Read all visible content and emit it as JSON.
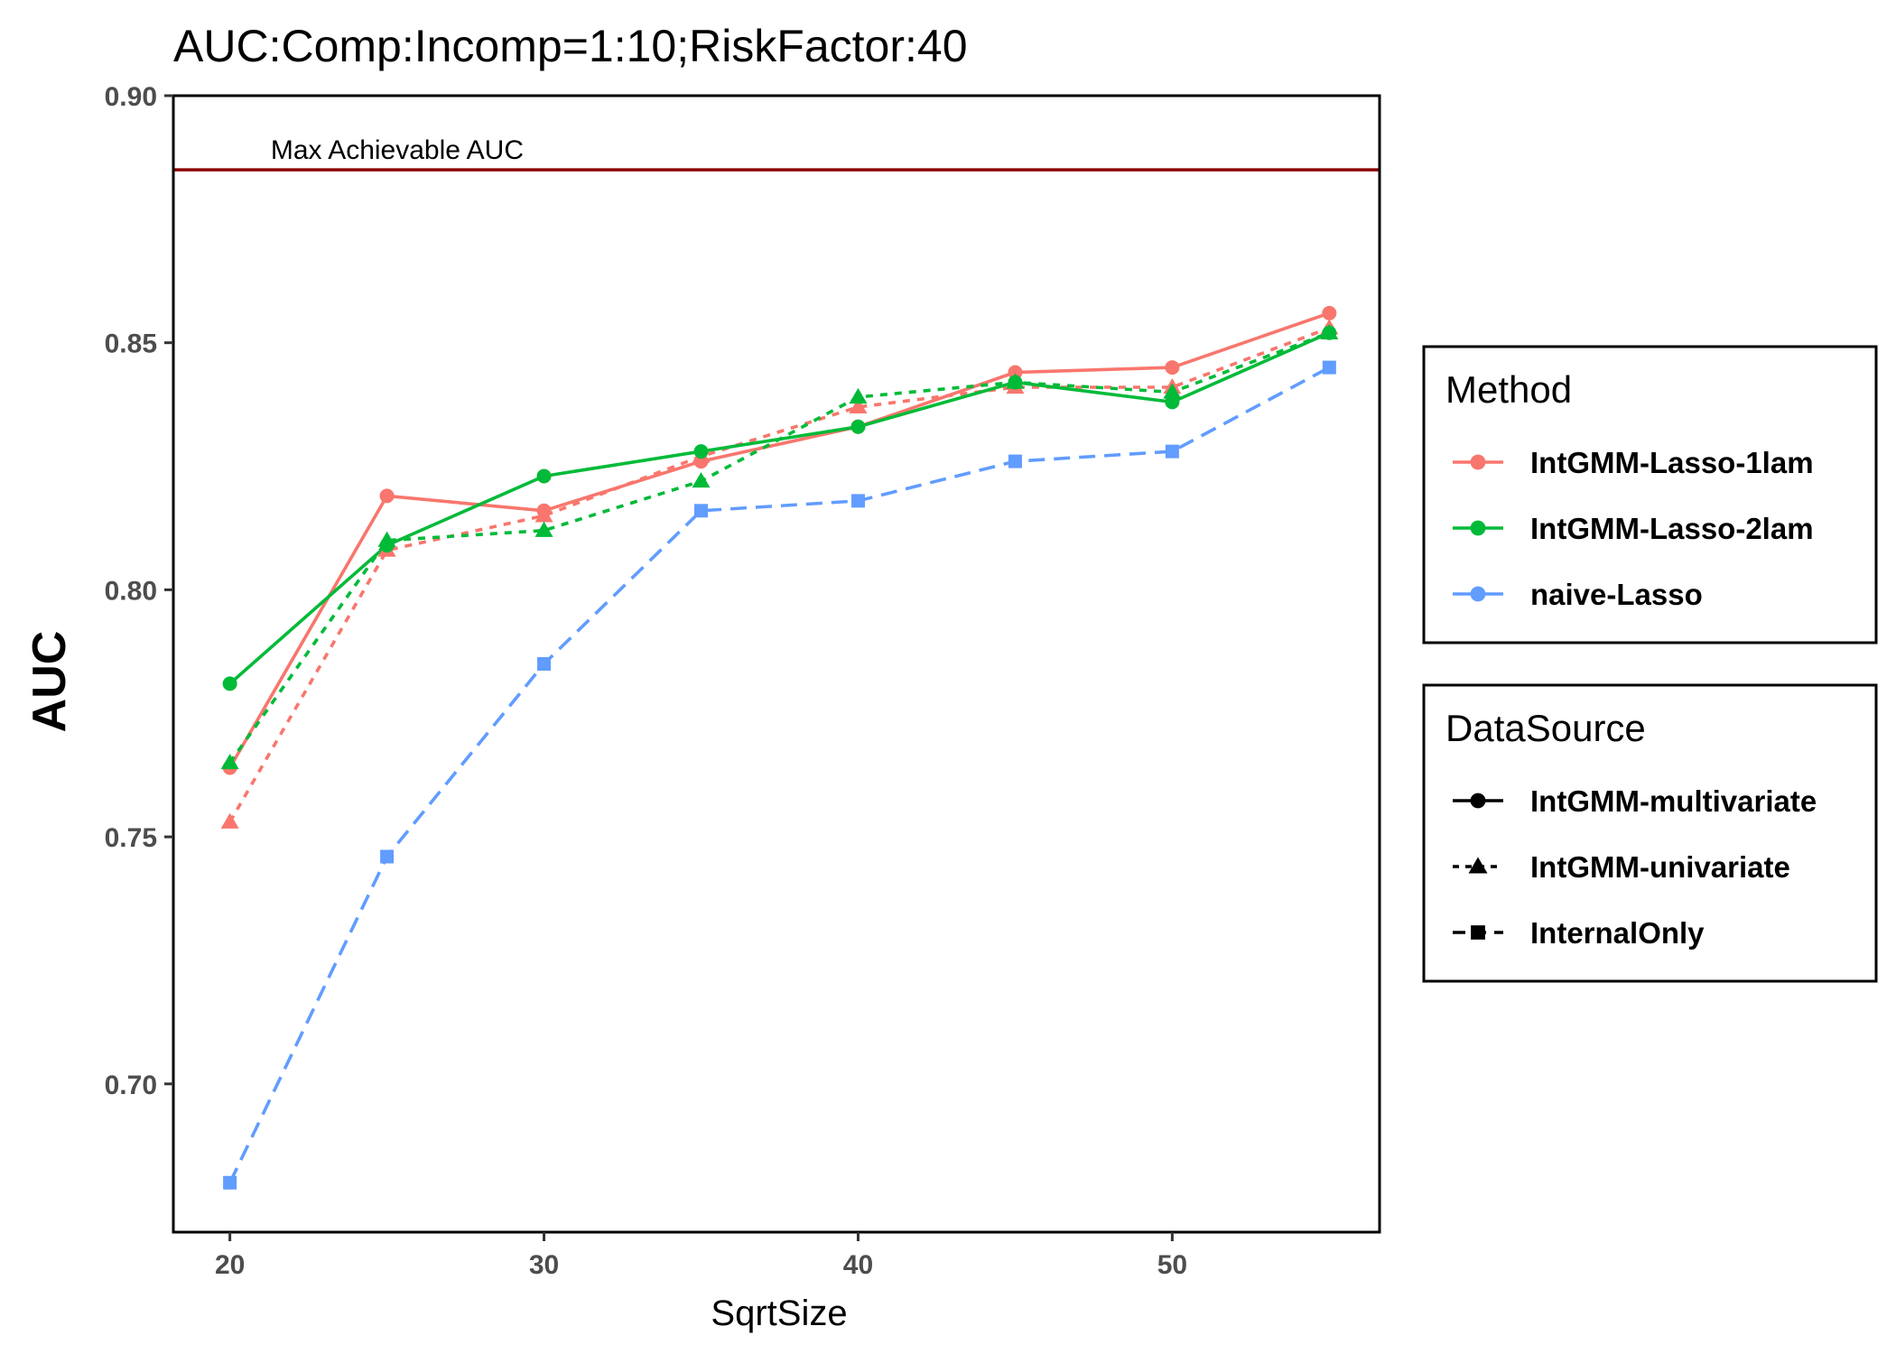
{
  "chart_data": {
    "type": "line",
    "title": "AUC:Comp:Incomp=1:10;RiskFactor:40",
    "xlabel": "SqrtSize",
    "ylabel": "AUC",
    "xlim": [
      18.2,
      56.6
    ],
    "ylim": [
      0.67,
      0.9
    ],
    "xticks": [
      20,
      30,
      40,
      50
    ],
    "xtick_labels": [
      "20",
      "30",
      "40",
      "50"
    ],
    "yticks": [
      0.7,
      0.75,
      0.8,
      0.85,
      0.9
    ],
    "ytick_labels": [
      "0.70",
      "0.75",
      "0.80",
      "0.85",
      "0.90"
    ],
    "grid": false,
    "reference_line": {
      "y": 0.885,
      "label": "Max Achievable AUC",
      "color": "#8b0000"
    },
    "x": [
      20,
      25,
      30,
      35,
      40,
      45,
      50,
      55
    ],
    "series": [
      {
        "method": "IntGMM-Lasso-1lam",
        "datasource": "IntGMM-multivariate",
        "color": "#f8766d",
        "values": [
          0.764,
          0.819,
          0.816,
          0.826,
          0.833,
          0.844,
          0.845,
          0.856
        ]
      },
      {
        "method": "IntGMM-Lasso-1lam",
        "datasource": "IntGMM-univariate",
        "color": "#f8766d",
        "values": [
          0.753,
          0.808,
          0.815,
          0.827,
          0.837,
          0.841,
          0.841,
          0.853
        ]
      },
      {
        "method": "IntGMM-Lasso-2lam",
        "datasource": "IntGMM-multivariate",
        "color": "#00ba38",
        "values": [
          0.781,
          0.809,
          0.823,
          0.828,
          0.833,
          0.842,
          0.838,
          0.852
        ]
      },
      {
        "method": "IntGMM-Lasso-2lam",
        "datasource": "IntGMM-univariate",
        "color": "#00ba38",
        "values": [
          0.765,
          0.81,
          0.812,
          0.822,
          0.839,
          0.842,
          0.84,
          0.852
        ]
      },
      {
        "method": "naive-Lasso",
        "datasource": "InternalOnly",
        "color": "#619cff",
        "values": [
          0.68,
          0.746,
          0.785,
          0.816,
          0.818,
          0.826,
          0.828,
          0.845
        ]
      }
    ],
    "legends": [
      {
        "title": "Method",
        "placement": "right",
        "entries": [
          {
            "label": "IntGMM-Lasso-1lam",
            "color": "#f8766d"
          },
          {
            "label": "IntGMM-Lasso-2lam",
            "color": "#00ba38"
          },
          {
            "label": "naive-Lasso",
            "color": "#619cff"
          }
        ]
      },
      {
        "title": "DataSource",
        "placement": "right",
        "entries": [
          {
            "label": "IntGMM-multivariate",
            "linetype": "solid",
            "shape": "circle"
          },
          {
            "label": "IntGMM-univariate",
            "linetype": "dotted",
            "shape": "triangle"
          },
          {
            "label": "InternalOnly",
            "linetype": "dashed",
            "shape": "square"
          }
        ]
      }
    ]
  }
}
